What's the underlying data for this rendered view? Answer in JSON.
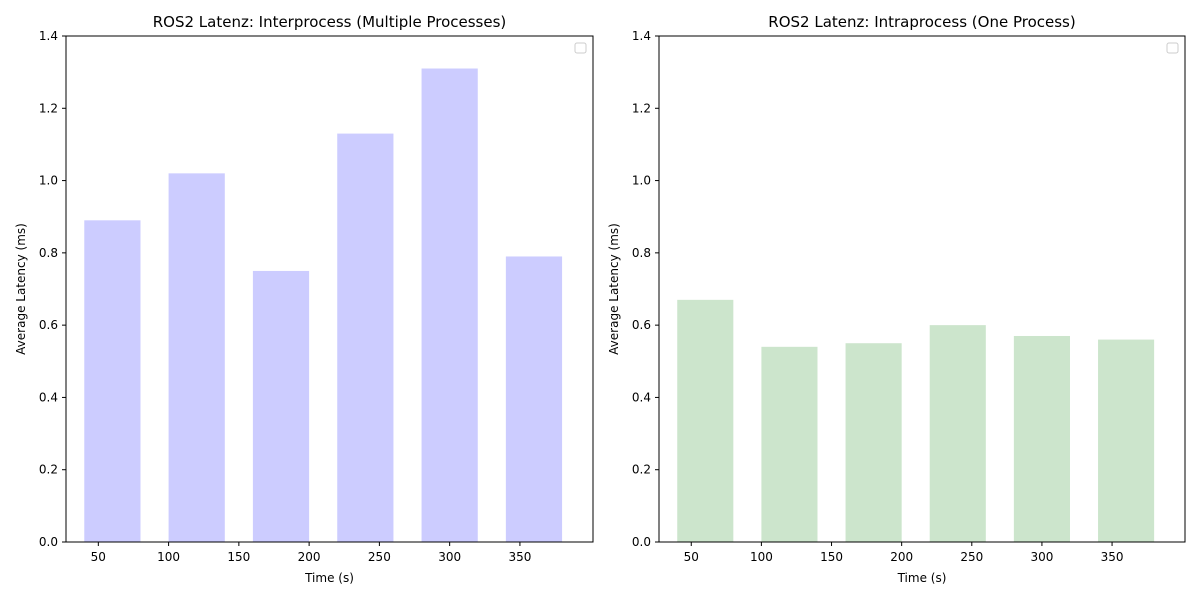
{
  "chart_data": [
    {
      "type": "bar",
      "title": "ROS2 Latenz: Interprocess (Multiple Processes)",
      "xlabel": "Time (s)",
      "ylabel": "Average Latency (ms)",
      "x": [
        60,
        120,
        180,
        240,
        300,
        360
      ],
      "values": [
        0.89,
        1.02,
        0.75,
        1.13,
        1.31,
        0.79
      ],
      "bar_width": 40,
      "xlim": [
        27,
        402
      ],
      "ylim": [
        0,
        1.4
      ],
      "xticks": [
        50,
        100,
        150,
        200,
        250,
        300,
        350
      ],
      "xtick_labels": [
        "50",
        "100",
        "150",
        "200",
        "250",
        "300",
        "350"
      ],
      "yticks": [
        0.0,
        0.2,
        0.4,
        0.6,
        0.8,
        1.0,
        1.2,
        1.4
      ],
      "ytick_labels": [
        "0.0",
        "0.2",
        "0.4",
        "0.6",
        "0.8",
        "1.0",
        "1.2",
        "1.4"
      ],
      "color": "#ccccff",
      "legend": "top-right",
      "grid": false
    },
    {
      "type": "bar",
      "title": "ROS2 Latenz: Intraprocess (One Process)",
      "xlabel": "Time (s)",
      "ylabel": "Average Latency (ms)",
      "x": [
        60,
        120,
        180,
        240,
        300,
        360
      ],
      "values": [
        0.67,
        0.54,
        0.55,
        0.6,
        0.57,
        0.56
      ],
      "bar_width": 40,
      "xlim": [
        27,
        402
      ],
      "ylim": [
        0,
        1.4
      ],
      "xticks": [
        50,
        100,
        150,
        200,
        250,
        300,
        350
      ],
      "xtick_labels": [
        "50",
        "100",
        "150",
        "200",
        "250",
        "300",
        "350"
      ],
      "yticks": [
        0.0,
        0.2,
        0.4,
        0.6,
        0.8,
        1.0,
        1.2,
        1.4
      ],
      "ytick_labels": [
        "0.0",
        "0.2",
        "0.4",
        "0.6",
        "0.8",
        "1.0",
        "1.2",
        "1.4"
      ],
      "color": "#cce5cc",
      "legend": "top-right",
      "grid": false
    }
  ]
}
